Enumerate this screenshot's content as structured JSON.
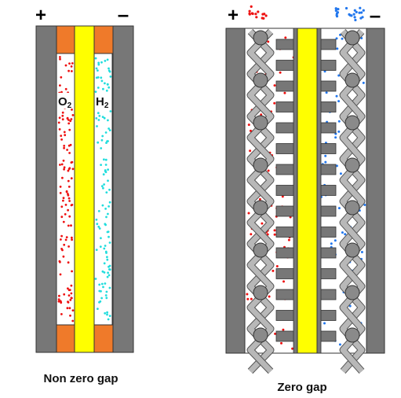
{
  "colors": {
    "electrode": "#777777",
    "electrode_stroke": "#333333",
    "frame": "#ef7a2a",
    "membrane": "#ffff00",
    "oxygen": "#ee1111",
    "hydrogen_left": "#22dddd",
    "hydrogen_right": "#2277ee",
    "mesh_fill": "#b8b8b8",
    "mesh_stroke": "#555555"
  },
  "left_cell": {
    "plus": "+",
    "minus": "–",
    "o2_main": "O",
    "o2_sub": "2",
    "h2_main": "H",
    "h2_sub": "2",
    "caption": "Non zero gap"
  },
  "right_cell": {
    "plus": "+",
    "minus": "–",
    "caption": "Zero gap"
  }
}
